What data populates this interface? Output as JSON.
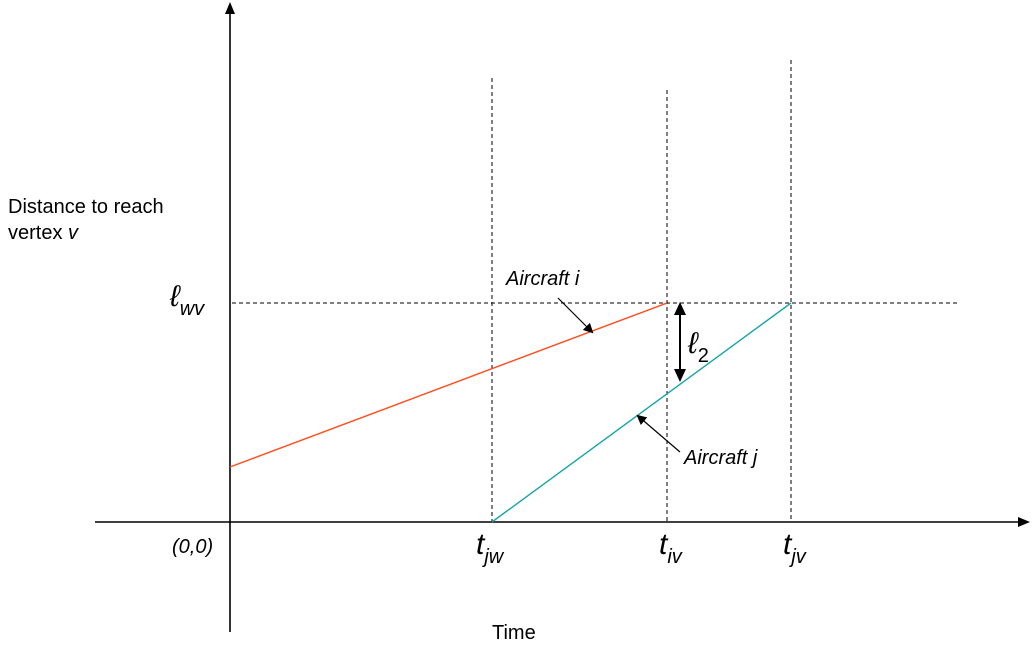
{
  "y_axis_label_line1": "Distance to reach",
  "y_axis_label_line2_prefix": "vertex ",
  "y_axis_label_line2_var": "v",
  "x_axis_label": "Time",
  "origin_label": "(0,0)",
  "ticks": {
    "t_jw": {
      "base": "t",
      "sub": "jw"
    },
    "t_iv": {
      "base": "t",
      "sub": "iv"
    },
    "t_jv": {
      "base": "t",
      "sub": "jv"
    }
  },
  "y_level_label": {
    "base": "ℓ",
    "sub": "wv"
  },
  "gap_label": {
    "base": "ℓ",
    "sub": "2"
  },
  "annotations": {
    "aircraft_i": "Aircraft i",
    "aircraft_j": "Aircraft j"
  },
  "colors": {
    "aircraft_i_line": "#ff4a1c",
    "aircraft_j_line": "#19a3a8",
    "axes": "#000000",
    "guides": "#000000"
  }
}
